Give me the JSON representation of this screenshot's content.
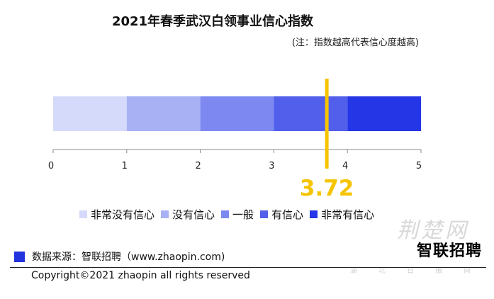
{
  "title": "2021年春季武汉白领事业信心指数",
  "note": "(注：指数越高代表信心度越高)",
  "source": "数据来源：智联招聘（www.zhaopin.com)",
  "copyright": "Copyright©2021 zhaopin all rights reserved",
  "logo_text": "智联招聘",
  "watermark_text": "荆楚网",
  "watermark_sub": "湖北日报网",
  "colors": {
    "marker": "#F5C400",
    "source_box": "#2233DD"
  },
  "chart_data": {
    "type": "bar",
    "title": "2021年春季武汉白领事业信心指数",
    "xlim": [
      0,
      5
    ],
    "ticks": [
      "0",
      "1",
      "2",
      "3",
      "4",
      "5"
    ],
    "segments": [
      {
        "name": "非常没有信心",
        "start": 0,
        "end": 1,
        "color": "#D5D9FA"
      },
      {
        "name": "没有信心",
        "start": 1,
        "end": 2,
        "color": "#A9B1F5"
      },
      {
        "name": "一般",
        "start": 2,
        "end": 3,
        "color": "#7D89F0"
      },
      {
        "name": "有信心",
        "start": 3,
        "end": 4,
        "color": "#515FEA"
      },
      {
        "name": "非常有信心",
        "start": 4,
        "end": 5,
        "color": "#2536E6"
      }
    ],
    "value": 3.72,
    "value_label": "3.72"
  }
}
